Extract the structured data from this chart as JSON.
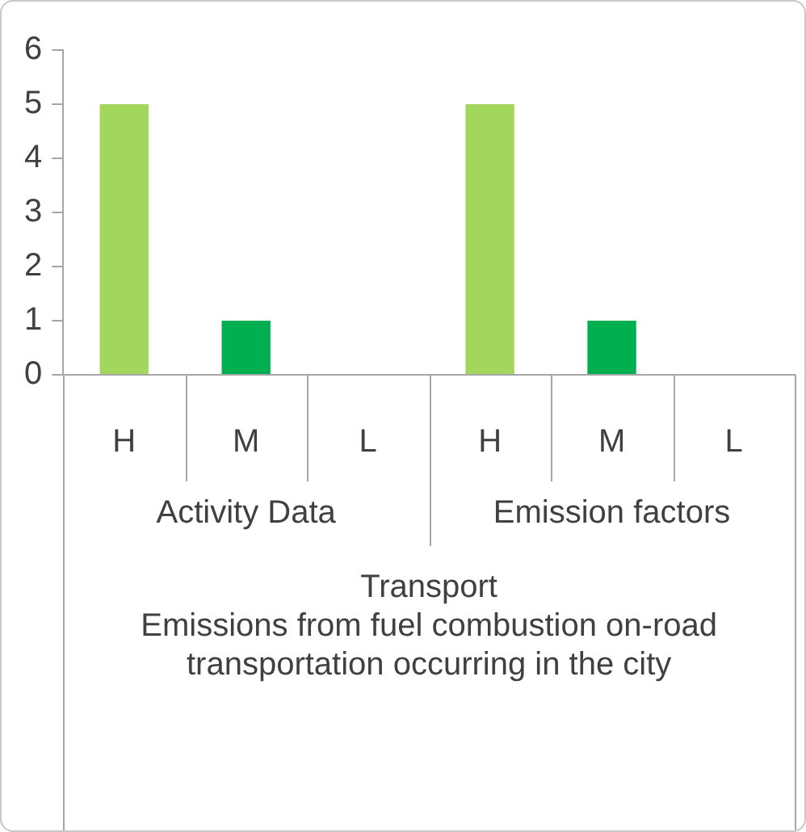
{
  "chart_data": {
    "type": "bar",
    "categories": [
      "H",
      "M",
      "L",
      "H",
      "M",
      "L"
    ],
    "values": [
      5,
      1,
      0,
      5,
      1,
      0
    ],
    "colors": [
      "#a3d65c",
      "#00b050",
      "#00b050",
      "#a3d65c",
      "#00b050",
      "#00b050"
    ],
    "ylim": [
      0,
      6
    ],
    "yticks": [
      0,
      1,
      2,
      3,
      4,
      5,
      6
    ],
    "annotations": [
      "Activity Data",
      "Emission factors"
    ],
    "xlabel": "Transport\nEmissions from fuel combustion on-road transportation occurring in the city"
  }
}
